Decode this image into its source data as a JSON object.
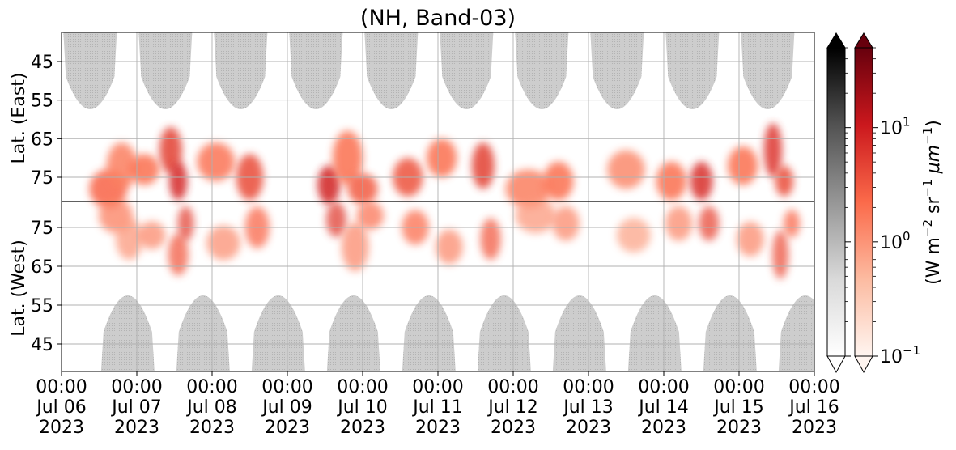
{
  "chart_data": {
    "type": "heatmap",
    "title": "(NH, Band-03)",
    "x_ticks": [
      {
        "time": "00:00",
        "date": "Jul 06",
        "year": "2023"
      },
      {
        "time": "00:00",
        "date": "Jul 07",
        "year": "2023"
      },
      {
        "time": "00:00",
        "date": "Jul 08",
        "year": "2023"
      },
      {
        "time": "00:00",
        "date": "Jul 09",
        "year": "2023"
      },
      {
        "time": "00:00",
        "date": "Jul 10",
        "year": "2023"
      },
      {
        "time": "00:00",
        "date": "Jul 11",
        "year": "2023"
      },
      {
        "time": "00:00",
        "date": "Jul 12",
        "year": "2023"
      },
      {
        "time": "00:00",
        "date": "Jul 13",
        "year": "2023"
      },
      {
        "time": "00:00",
        "date": "Jul 14",
        "year": "2023"
      },
      {
        "time": "00:00",
        "date": "Jul 15",
        "year": "2023"
      },
      {
        "time": "00:00",
        "date": "Jul 16",
        "year": "2023"
      }
    ],
    "y_upper": {
      "label": "Lat. (East)",
      "ticks": [
        "45",
        "55",
        "65",
        "75"
      ]
    },
    "y_lower": {
      "label": "Lat. (West)",
      "ticks": [
        "75",
        "65",
        "55",
        "45"
      ]
    },
    "colorbar": {
      "label": "(W m$^{-2}$ sr$^{-1}$ $\\mu$m$^{-1}$)",
      "label_parts": [
        "(W m",
        "−2",
        " sr",
        "−1",
        " μm",
        "−1",
        ")"
      ],
      "scale": "log",
      "range": [
        0.1,
        50
      ],
      "ticks": [
        {
          "value": 0.1,
          "base": "10",
          "exp": "−1"
        },
        {
          "value": 1,
          "base": "10",
          "exp": "0"
        },
        {
          "value": 10,
          "base": "10",
          "exp": "1"
        }
      ],
      "colormaps": [
        "Greys",
        "Reds"
      ],
      "extend": "both"
    },
    "grid": true,
    "colors": {
      "grey_block": "#c4c4c4",
      "red_peak": "#b40f1a"
    },
    "aurora_patches": [
      {
        "day": 0.62,
        "lat": 78,
        "value": 2.5,
        "span_h": 0.25,
        "span_lat": 5
      },
      {
        "day": 0.8,
        "lat": 72,
        "value": 1.5,
        "span_h": 0.2,
        "span_lat": 6
      },
      {
        "day": 1.1,
        "lat": 73,
        "value": 2.0,
        "span_h": 0.2,
        "span_lat": 4
      },
      {
        "day": 1.45,
        "lat": 68,
        "value": 5.0,
        "span_h": 0.15,
        "span_lat": 6
      },
      {
        "day": 1.55,
        "lat": 76,
        "value": 8.0,
        "span_h": 0.12,
        "span_lat": 5
      },
      {
        "day": 2.05,
        "lat": 71,
        "value": 1.8,
        "span_h": 0.25,
        "span_lat": 5
      },
      {
        "day": 2.5,
        "lat": 75,
        "value": 4.0,
        "span_h": 0.18,
        "span_lat": 6
      },
      {
        "day": 3.55,
        "lat": 77,
        "value": 9.0,
        "span_h": 0.15,
        "span_lat": 5
      },
      {
        "day": 3.8,
        "lat": 70,
        "value": 2.0,
        "span_h": 0.2,
        "span_lat": 7
      },
      {
        "day": 4.0,
        "lat": 78,
        "value": 3.0,
        "span_h": 0.2,
        "span_lat": 4
      },
      {
        "day": 4.6,
        "lat": 75,
        "value": 3.5,
        "span_h": 0.2,
        "span_lat": 5
      },
      {
        "day": 5.05,
        "lat": 70,
        "value": 2.0,
        "span_h": 0.2,
        "span_lat": 5
      },
      {
        "day": 5.6,
        "lat": 72,
        "value": 5.0,
        "span_h": 0.15,
        "span_lat": 6
      },
      {
        "day": 6.2,
        "lat": 78,
        "value": 1.5,
        "span_h": 0.3,
        "span_lat": 5
      },
      {
        "day": 6.6,
        "lat": 76,
        "value": 2.0,
        "span_h": 0.2,
        "span_lat": 5
      },
      {
        "day": 7.5,
        "lat": 73,
        "value": 1.2,
        "span_h": 0.25,
        "span_lat": 5
      },
      {
        "day": 8.1,
        "lat": 76,
        "value": 2.0,
        "span_h": 0.2,
        "span_lat": 5
      },
      {
        "day": 8.5,
        "lat": 76,
        "value": 7.0,
        "span_h": 0.15,
        "span_lat": 5
      },
      {
        "day": 9.05,
        "lat": 72,
        "value": 2.0,
        "span_h": 0.2,
        "span_lat": 5
      },
      {
        "day": 9.45,
        "lat": 68,
        "value": 6.0,
        "span_h": 0.12,
        "span_lat": 7
      },
      {
        "day": 9.6,
        "lat": 76,
        "value": 4.0,
        "span_h": 0.12,
        "span_lat": 4
      }
    ]
  }
}
